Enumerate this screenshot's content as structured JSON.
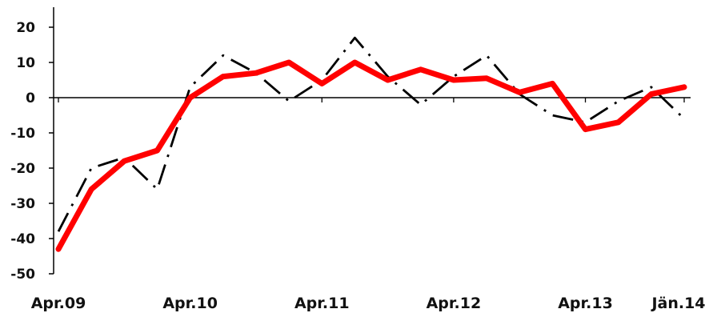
{
  "chart_data": {
    "type": "line",
    "title": "",
    "xlabel": "",
    "ylabel": "",
    "ylim": [
      -50,
      20
    ],
    "yticks": [
      20,
      10,
      0,
      -10,
      -20,
      -30,
      -40,
      -50
    ],
    "grid": false,
    "x_tick_labels": [
      "Apr.09",
      "Apr.10",
      "Apr.11",
      "Apr.12",
      "Apr.13",
      "Jän.14"
    ],
    "x_tick_positions": [
      0,
      4,
      8,
      12,
      16,
      19
    ],
    "x": [
      0,
      1,
      2,
      3,
      4,
      5,
      6,
      7,
      8,
      9,
      10,
      11,
      12,
      13,
      14,
      15,
      16,
      17,
      18,
      19
    ],
    "series": [
      {
        "style": "dash-dot",
        "color": "#000000",
        "values": [
          -38,
          -20,
          -17,
          -26,
          3,
          12,
          7,
          -1,
          5,
          17,
          6,
          -2,
          6,
          12,
          1,
          -5,
          -7,
          -1,
          3,
          -6
        ]
      },
      {
        "style": "solid-thick",
        "color": "#ff0000",
        "values": [
          -43,
          -26,
          -18,
          -15,
          0,
          6,
          7,
          10,
          4,
          10,
          5,
          8,
          5,
          5.5,
          1.5,
          4,
          -9,
          -7,
          1,
          3
        ]
      }
    ]
  }
}
